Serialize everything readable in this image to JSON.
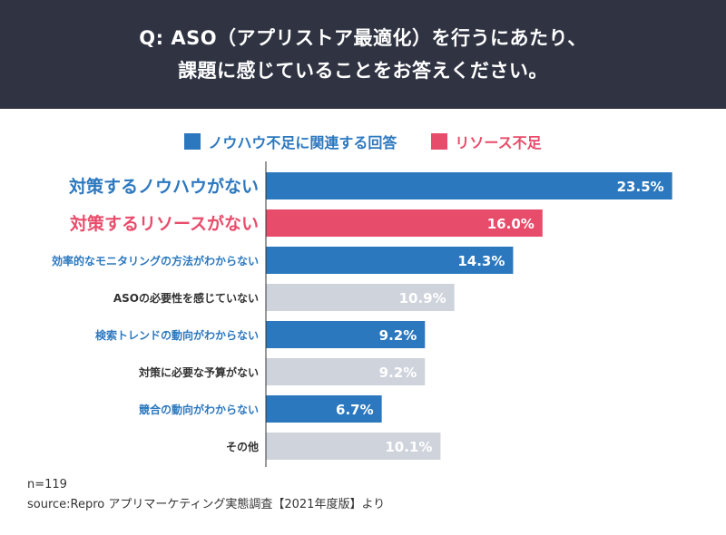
{
  "header": {
    "line1": "Q: ASO（アプリストア最適化）を行うにあたり、",
    "line2": "課題に感じていることをお答えください。"
  },
  "legend": [
    {
      "label": "ノウハウ不足に関連する回答",
      "color": "#2c78bf"
    },
    {
      "label": "リソース不足",
      "color": "#e84c6b"
    }
  ],
  "colors": {
    "knowhow": "#2c78bf",
    "resource": "#e84c6b",
    "other": "#cfd3dc",
    "axis": "#333333",
    "label_dark": "#333333"
  },
  "chart_data": {
    "type": "bar",
    "orientation": "horizontal",
    "title": "Q: ASO（アプリストア最適化）を行うにあたり、課題に感じていることをお答えください。",
    "xlim": [
      0,
      25
    ],
    "categories": [
      "対策するノウハウがない",
      "対策するリソースがない",
      "効率的なモニタリングの方法がわからない",
      "ASOの必要性を感じていない",
      "検索トレンドの動向がわからない",
      "対策に必要な予算がない",
      "競合の動向がわからない",
      "その他"
    ],
    "values": [
      23.5,
      16.0,
      14.3,
      10.9,
      9.2,
      9.2,
      6.7,
      10.1
    ],
    "value_labels": [
      "23.5%",
      "16.0%",
      "14.3%",
      "10.9%",
      "9.2%",
      "9.2%",
      "6.7%",
      "10.1%"
    ],
    "groups": [
      "knowhow",
      "resource",
      "knowhow",
      "other",
      "knowhow",
      "other",
      "knowhow",
      "other"
    ],
    "highlight": [
      true,
      true,
      false,
      false,
      false,
      false,
      false,
      false
    ]
  },
  "footer": {
    "n": "n=119",
    "source": "source:Repro アプリマーケティング実態調査【2021年度版】より"
  }
}
